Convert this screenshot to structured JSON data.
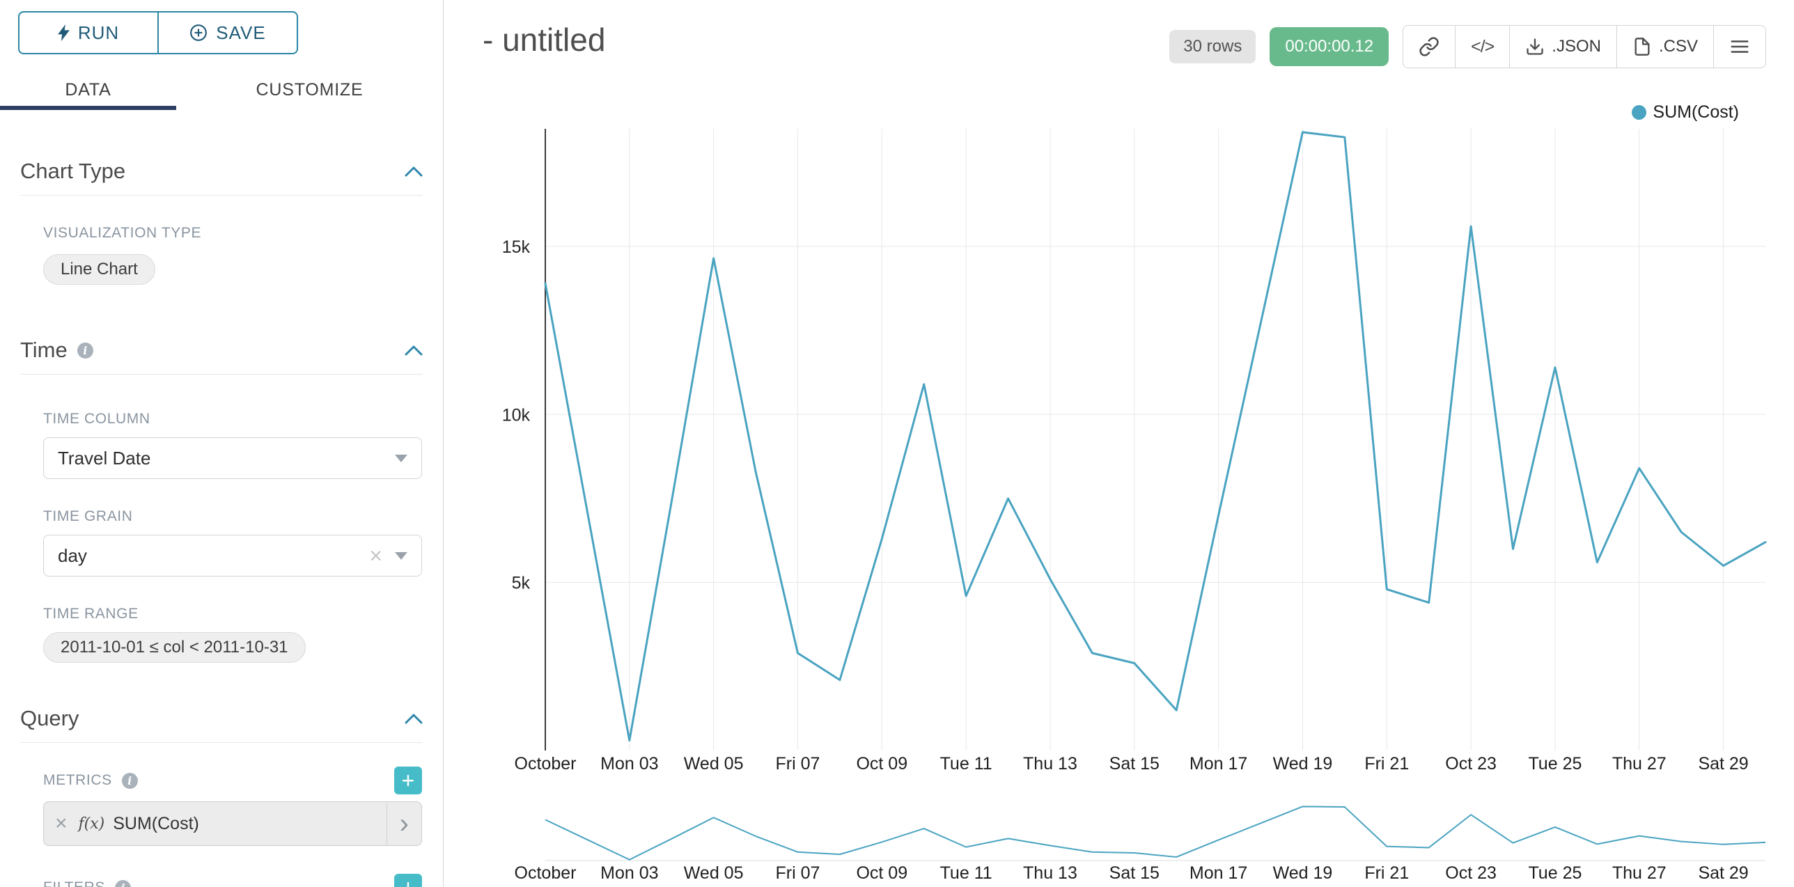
{
  "toolbar": {
    "run_label": "RUN",
    "save_label": "SAVE"
  },
  "tabs": {
    "data": "DATA",
    "customize": "CUSTOMIZE"
  },
  "panel": {
    "chart_type": {
      "title": "Chart Type",
      "viz_type_label": "VISUALIZATION TYPE",
      "viz_type_value": "Line Chart"
    },
    "time": {
      "title": "Time",
      "time_column_label": "TIME COLUMN",
      "time_column_value": "Travel Date",
      "time_grain_label": "TIME GRAIN",
      "time_grain_value": "day",
      "time_range_label": "TIME RANGE",
      "time_range_value": "2011-10-01 ≤ col < 2011-10-31"
    },
    "query": {
      "title": "Query",
      "metrics_label": "METRICS",
      "metric_fx_label": "f(x)",
      "metric_name": "SUM(Cost)",
      "filters_label": "FILTERS"
    }
  },
  "header": {
    "title": "- untitled",
    "rows_badge": "30 rows",
    "timer_badge": "00:00:00.12",
    "embed_label": "</>",
    "json_label": ".JSON",
    "csv_label": ".CSV"
  },
  "legend": {
    "label": "SUM(Cost)",
    "color": "#49a3c1"
  },
  "chart_data": {
    "type": "line",
    "title": "",
    "x": [
      "2011-10-01",
      "2011-10-02",
      "2011-10-03",
      "2011-10-04",
      "2011-10-05",
      "2011-10-06",
      "2011-10-07",
      "2011-10-08",
      "2011-10-09",
      "2011-10-10",
      "2011-10-11",
      "2011-10-12",
      "2011-10-13",
      "2011-10-14",
      "2011-10-15",
      "2011-10-16",
      "2011-10-17",
      "2011-10-18",
      "2011-10-19",
      "2011-10-20",
      "2011-10-21",
      "2011-10-22",
      "2011-10-23",
      "2011-10-24",
      "2011-10-25",
      "2011-10-26",
      "2011-10-27",
      "2011-10-28",
      "2011-10-29",
      "2011-10-30"
    ],
    "series": [
      {
        "name": "SUM(Cost)",
        "values": [
          13900,
          7100,
          300,
          7400,
          14650,
          8300,
          2900,
          2100,
          6300,
          10900,
          4600,
          7500,
          5100,
          2900,
          2600,
          1200,
          7000,
          12700,
          18400,
          18250,
          4800,
          4400,
          15600,
          6000,
          11400,
          5600,
          8400,
          6500,
          5500,
          6200
        ]
      }
    ],
    "x_tick_labels": [
      "October",
      "Mon 03",
      "Wed 05",
      "Fri 07",
      "Oct 09",
      "Tue 11",
      "Thu 13",
      "Sat 15",
      "Mon 17",
      "Wed 19",
      "Fri 21",
      "Oct 23",
      "Tue 25",
      "Thu 27",
      "Sat 29"
    ],
    "y_ticks": [
      5000,
      10000,
      15000
    ],
    "y_tick_labels": [
      "5k",
      "10k",
      "15k"
    ],
    "ylim": [
      0,
      18500
    ],
    "xlabel": "",
    "ylabel": "",
    "grid": true,
    "line_color": "#49a3c1",
    "legend_position": "top-right",
    "has_range_brush": true
  }
}
